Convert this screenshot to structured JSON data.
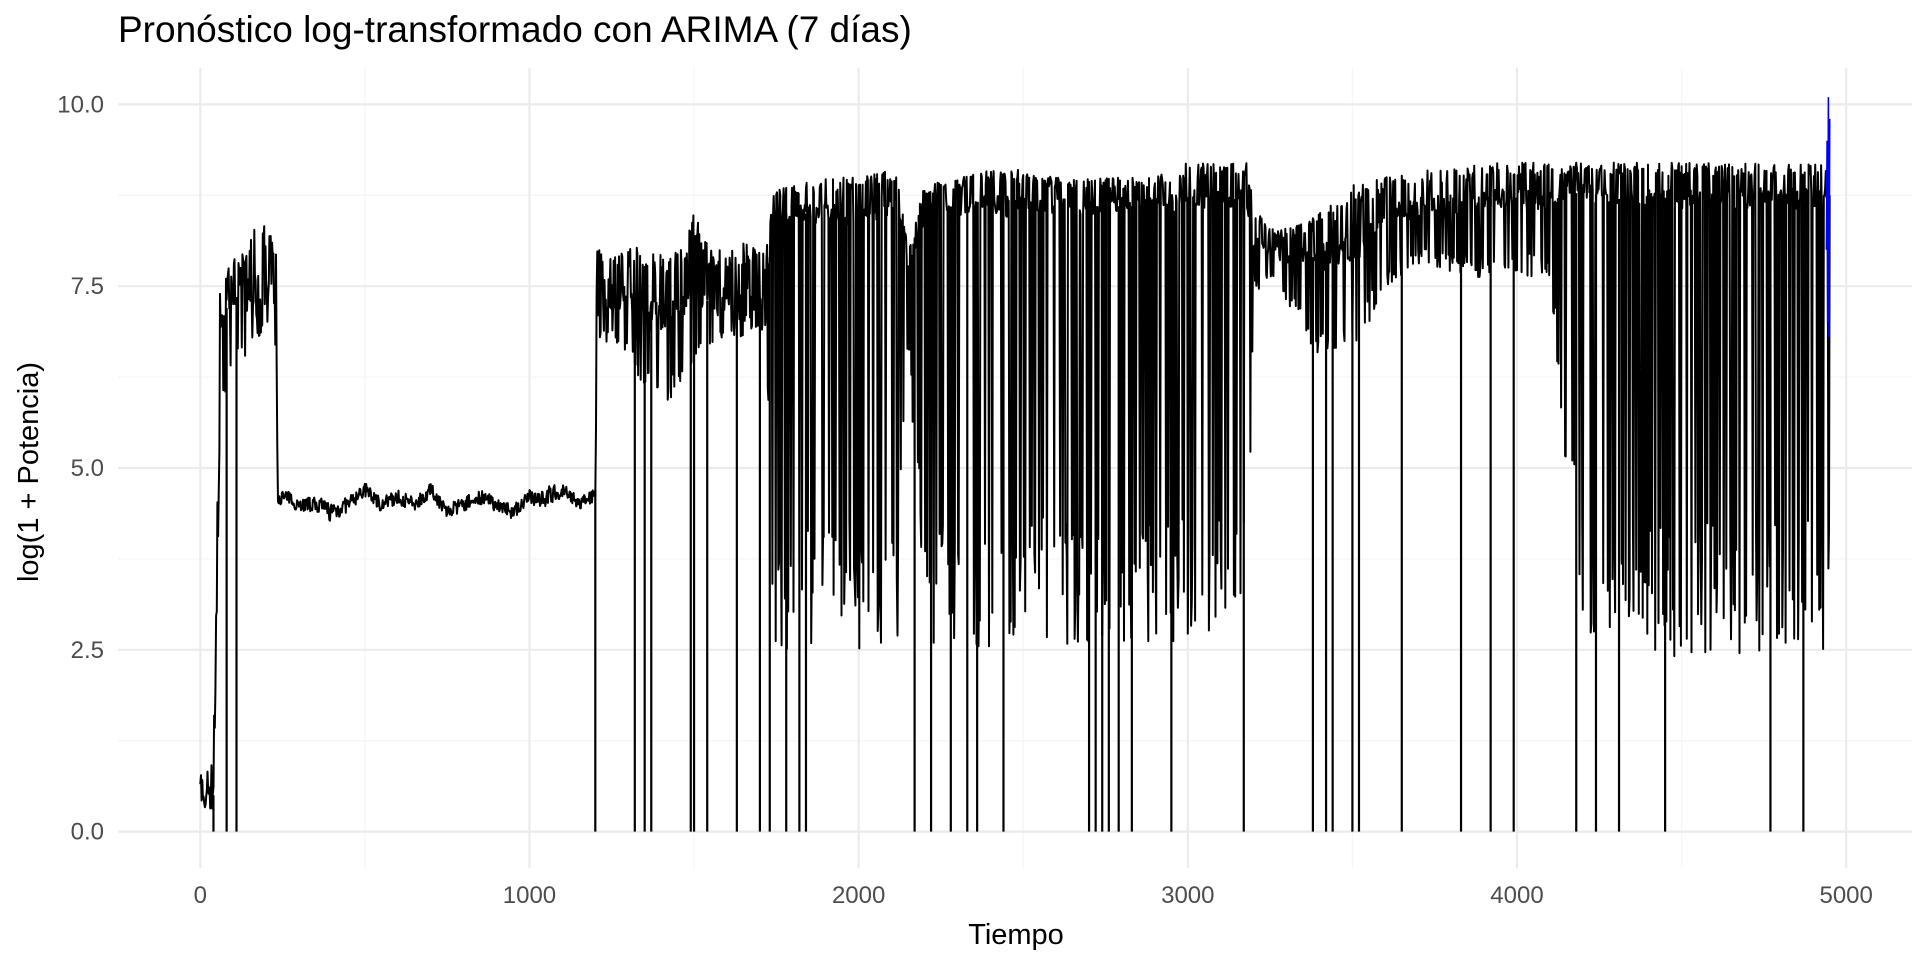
{
  "chart_data": {
    "type": "line",
    "title": "Pronóstico log-transformado con ARIMA (7 días)",
    "xlabel": "Tiempo",
    "ylabel": "log(1 + Potencia)",
    "xlim": [
      -250,
      5200
    ],
    "ylim": [
      -0.5,
      10.5
    ],
    "x_ticks": [
      0,
      1000,
      2000,
      3000,
      4000,
      5000
    ],
    "x_tick_labels": [
      "0",
      "1000",
      "2000",
      "3000",
      "4000",
      "5000"
    ],
    "y_ticks": [
      0,
      2.5,
      5,
      7.5,
      10
    ],
    "y_tick_labels": [
      "0.0",
      "2.5",
      "5.0",
      "7.5",
      "10.0"
    ],
    "grid": true,
    "legend": "none",
    "colors": {
      "observed": "#000000",
      "forecast": "#0000ff",
      "grid_major": "#ebebeb",
      "grid_minor": "#f5f5f5"
    },
    "series": [
      {
        "role": "observed",
        "x": [
          0,
          20,
          40,
          60,
          90,
          130,
          180,
          230,
          235,
          260,
          300,
          350,
          400,
          450,
          500,
          550,
          600,
          650,
          700,
          750,
          800,
          850,
          900,
          950,
          1000,
          1050,
          1100,
          1150,
          1190,
          1200,
          1205,
          1250,
          1300,
          1350,
          1400,
          1450,
          1500,
          1550,
          1600,
          1650,
          1700,
          1720,
          1740,
          1800,
          1900,
          2000,
          2100,
          2120,
          2150,
          2200,
          2300,
          2400,
          2500,
          2600,
          2700,
          2800,
          2900,
          3000,
          3100,
          3180,
          3200,
          3250,
          3300,
          3400,
          3500,
          3600,
          3700,
          3800,
          3900,
          4000,
          4100,
          4200,
          4300,
          4400,
          4500,
          4600,
          4700,
          4800,
          4900,
          4950
        ],
        "y": [
          0.4,
          0.5,
          0.5,
          7.0,
          7.3,
          7.4,
          7.3,
          7.3,
          4.6,
          4.6,
          4.5,
          4.5,
          4.4,
          4.5,
          4.7,
          4.5,
          4.6,
          4.5,
          4.7,
          4.4,
          4.5,
          4.6,
          4.5,
          4.4,
          4.6,
          4.6,
          4.7,
          4.5,
          4.6,
          4.7,
          7.3,
          7.4,
          7.3,
          7.2,
          7.1,
          7.2,
          7.3,
          7.3,
          7.3,
          7.2,
          7.3,
          7.3,
          8.5,
          8.5,
          8.5,
          8.5,
          8.6,
          8.6,
          7.8,
          8.5,
          8.6,
          8.6,
          8.6,
          8.6,
          8.6,
          8.6,
          8.6,
          8.7,
          8.7,
          8.7,
          8.1,
          8.0,
          7.9,
          7.9,
          8.0,
          8.5,
          8.6,
          8.6,
          8.7,
          8.7,
          8.7,
          8.8,
          8.7,
          8.7,
          8.7,
          8.7,
          8.7,
          8.7,
          8.7,
          8.7
        ],
        "upper": [
          0.8,
          0.9,
          1.0,
          7.5,
          7.8,
          8.0,
          8.6,
          8.0,
          4.7,
          4.7,
          4.6,
          4.6,
          4.6,
          4.6,
          4.8,
          4.6,
          4.7,
          4.6,
          4.8,
          4.5,
          4.6,
          4.7,
          4.6,
          4.5,
          4.7,
          4.8,
          4.8,
          4.6,
          4.7,
          4.8,
          8.2,
          8.1,
          8.0,
          8.1,
          8.0,
          8.0,
          8.5,
          8.0,
          8.0,
          8.1,
          8.0,
          8.0,
          8.8,
          8.9,
          9.0,
          9.0,
          9.1,
          9.0,
          8.0,
          8.9,
          9.0,
          9.1,
          9.1,
          9.0,
          9.0,
          9.0,
          9.0,
          9.2,
          9.2,
          9.2,
          8.6,
          8.3,
          8.3,
          8.5,
          8.9,
          9.0,
          9.1,
          9.1,
          9.2,
          9.2,
          9.2,
          9.2,
          9.2,
          9.2,
          9.2,
          9.2,
          9.2,
          9.2,
          9.2,
          9.2
        ],
        "lower": [
          0.3,
          0.3,
          0.3,
          5.6,
          6.2,
          6.5,
          6.8,
          6.6,
          4.5,
          4.5,
          4.4,
          4.4,
          4.3,
          4.4,
          4.6,
          4.4,
          4.5,
          4.4,
          4.6,
          4.3,
          4.4,
          4.5,
          4.4,
          4.3,
          4.5,
          4.5,
          4.6,
          4.4,
          4.5,
          4.6,
          6.8,
          6.7,
          6.5,
          6.0,
          5.8,
          6.0,
          6.5,
          6.7,
          6.8,
          6.8,
          6.9,
          6.9,
          2.5,
          2.5,
          2.5,
          2.5,
          2.6,
          2.6,
          6.5,
          2.4,
          2.5,
          2.5,
          2.5,
          2.5,
          2.6,
          2.6,
          2.6,
          2.6,
          2.6,
          2.6,
          7.4,
          7.6,
          7.3,
          6.5,
          6.5,
          7.5,
          7.8,
          7.7,
          7.6,
          7.7,
          7.5,
          2.4,
          2.4,
          2.4,
          2.4,
          2.4,
          2.4,
          2.4,
          2.4,
          2.4
        ],
        "dips_to_zero": [
          40,
          80,
          110,
          1200,
          1320,
          1350,
          1370,
          1490,
          1500,
          1540,
          1630,
          1700,
          1730,
          1780,
          1820,
          1840,
          2170,
          2220,
          2280,
          2330,
          2360,
          2440,
          2700,
          2720,
          2740,
          2760,
          2790,
          2830,
          2950,
          3170,
          3380,
          3420,
          3440,
          3500,
          3520,
          3650,
          3830,
          3920,
          3990,
          4180,
          4240,
          4310,
          4450,
          4770,
          4870
        ]
      },
      {
        "role": "forecast",
        "x": [
          4940,
          4942,
          4944,
          4946,
          4948,
          4950
        ],
        "y": [
          8.0,
          9.5,
          7.0,
          10.1,
          6.8,
          9.8
        ]
      }
    ]
  }
}
